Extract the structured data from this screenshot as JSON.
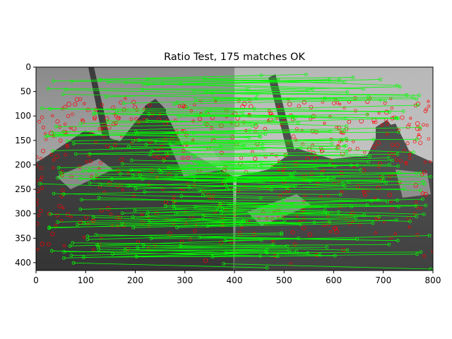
{
  "figure": {
    "title": "Ratio Test, 175 matches OK"
  },
  "axes": {
    "x_ticks": [
      0,
      100,
      200,
      300,
      400,
      500,
      600,
      700,
      800
    ],
    "y_ticks": [
      0,
      50,
      100,
      150,
      200,
      250,
      300,
      350,
      400
    ],
    "x_range": [
      0,
      800
    ],
    "y_range": [
      0,
      416
    ],
    "y_inverted": true
  },
  "image": {
    "description_colors": {
      "background_gray": "#7a7a7a",
      "keypoint_color": "#ff0000",
      "match_line_color": "#00ff00"
    },
    "match_count": 175,
    "panel_split_x": 400
  }
}
